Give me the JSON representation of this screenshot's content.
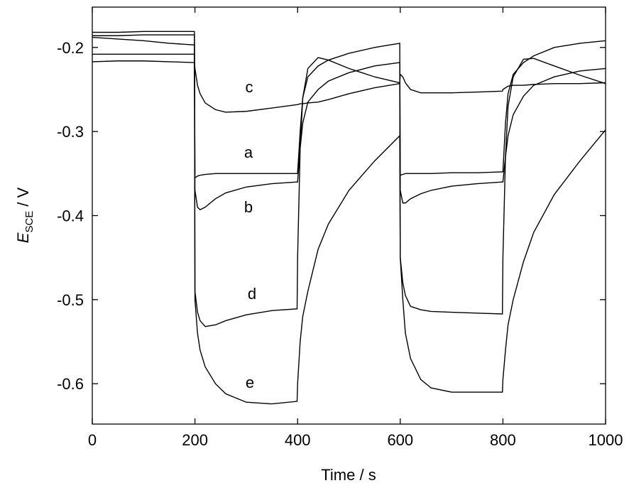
{
  "chart_data": {
    "type": "line",
    "x_label": "Time / s",
    "y_label": {
      "symbol": "E",
      "subscript": "SCE",
      "unit": "/ V"
    },
    "xlim": [
      0,
      1000
    ],
    "xticks": [
      0,
      200,
      400,
      600,
      800,
      1000
    ],
    "ylim": [
      -0.648,
      -0.152
    ],
    "yticks": [
      -0.6,
      -0.5,
      -0.4,
      -0.3,
      -0.2
    ],
    "color": "#000000",
    "x": [
      0,
      50,
      100,
      150,
      199,
      200,
      205,
      210,
      220,
      240,
      260,
      300,
      350,
      399,
      400,
      405,
      410,
      420,
      440,
      460,
      500,
      550,
      599,
      600,
      605,
      610,
      620,
      640,
      660,
      700,
      750,
      799,
      800,
      805,
      810,
      820,
      840,
      860,
      900,
      950,
      1000
    ],
    "series": [
      {
        "name": "a",
        "values": [
          -0.208,
          -0.208,
          -0.208,
          -0.208,
          -0.208,
          -0.355,
          -0.353,
          -0.352,
          -0.351,
          -0.35,
          -0.35,
          -0.35,
          -0.35,
          -0.35,
          -0.349,
          -0.3,
          -0.26,
          -0.235,
          -0.222,
          -0.215,
          -0.207,
          -0.2,
          -0.195,
          -0.352,
          -0.351,
          -0.35,
          -0.35,
          -0.35,
          -0.35,
          -0.349,
          -0.349,
          -0.348,
          -0.348,
          -0.29,
          -0.255,
          -0.232,
          -0.218,
          -0.21,
          -0.2,
          -0.195,
          -0.192
        ]
      },
      {
        "name": "b",
        "values": [
          -0.188,
          -0.19,
          -0.192,
          -0.195,
          -0.197,
          -0.37,
          -0.39,
          -0.393,
          -0.39,
          -0.38,
          -0.373,
          -0.366,
          -0.362,
          -0.36,
          -0.36,
          -0.32,
          -0.29,
          -0.265,
          -0.25,
          -0.24,
          -0.23,
          -0.222,
          -0.218,
          -0.37,
          -0.385,
          -0.385,
          -0.38,
          -0.374,
          -0.37,
          -0.365,
          -0.362,
          -0.36,
          -0.36,
          -0.33,
          -0.305,
          -0.28,
          -0.258,
          -0.245,
          -0.235,
          -0.228,
          -0.225
        ]
      },
      {
        "name": "c",
        "values": [
          -0.217,
          -0.216,
          -0.216,
          -0.217,
          -0.218,
          -0.225,
          -0.245,
          -0.255,
          -0.266,
          -0.274,
          -0.277,
          -0.276,
          -0.272,
          -0.268,
          -0.268,
          -0.267,
          -0.267,
          -0.266,
          -0.265,
          -0.262,
          -0.255,
          -0.248,
          -0.243,
          -0.232,
          -0.235,
          -0.242,
          -0.25,
          -0.254,
          -0.254,
          -0.254,
          -0.253,
          -0.252,
          -0.25,
          -0.248,
          -0.246,
          -0.245,
          -0.245,
          -0.244,
          -0.243,
          -0.243,
          -0.242
        ]
      },
      {
        "name": "d",
        "values": [
          -0.186,
          -0.186,
          -0.185,
          -0.185,
          -0.185,
          -0.49,
          -0.515,
          -0.525,
          -0.532,
          -0.53,
          -0.525,
          -0.518,
          -0.513,
          -0.511,
          -0.45,
          -0.32,
          -0.26,
          -0.225,
          -0.212,
          -0.215,
          -0.225,
          -0.235,
          -0.242,
          -0.45,
          -0.48,
          -0.495,
          -0.508,
          -0.512,
          -0.514,
          -0.515,
          -0.516,
          -0.517,
          -0.45,
          -0.33,
          -0.27,
          -0.235,
          -0.214,
          -0.213,
          -0.222,
          -0.233,
          -0.243
        ]
      },
      {
        "name": "e",
        "values": [
          -0.182,
          -0.182,
          -0.181,
          -0.181,
          -0.181,
          -0.5,
          -0.54,
          -0.56,
          -0.58,
          -0.6,
          -0.612,
          -0.622,
          -0.624,
          -0.621,
          -0.6,
          -0.55,
          -0.52,
          -0.49,
          -0.44,
          -0.41,
          -0.37,
          -0.335,
          -0.305,
          -0.45,
          -0.5,
          -0.54,
          -0.57,
          -0.595,
          -0.605,
          -0.61,
          -0.61,
          -0.61,
          -0.595,
          -0.56,
          -0.53,
          -0.5,
          -0.455,
          -0.42,
          -0.375,
          -0.335,
          -0.298
        ]
      }
    ]
  }
}
